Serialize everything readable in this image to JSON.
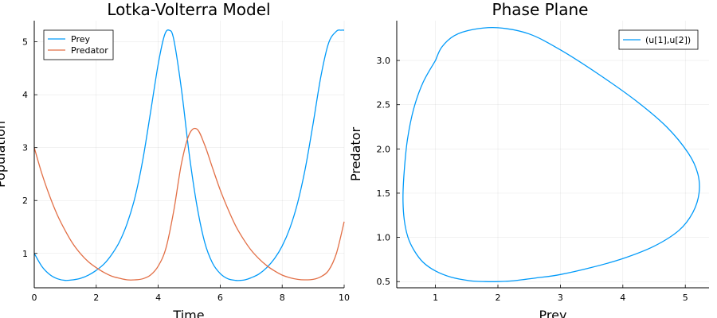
{
  "chart_data": [
    {
      "type": "line",
      "title": "Lotka-Volterra Model",
      "xlabel": "Time",
      "ylabel": "Population",
      "xlim": [
        0,
        10
      ],
      "ylim": [
        0.35,
        5.4
      ],
      "xticks": [
        0,
        2,
        4,
        6,
        8,
        10
      ],
      "yticks": [
        1,
        2,
        3,
        4,
        5
      ],
      "grid": true,
      "legend": "top-left",
      "series": [
        {
          "name": "Prey",
          "color": "#009af9",
          "x": [
            0,
            0.25,
            0.5,
            0.75,
            1.0,
            1.25,
            1.5,
            1.75,
            2.0,
            2.25,
            2.5,
            2.75,
            3.0,
            3.25,
            3.5,
            3.75,
            4.0,
            4.2,
            4.35,
            4.5,
            4.75,
            5.0,
            5.25,
            5.5,
            5.75,
            6.0,
            6.25,
            6.5,
            6.65,
            6.8,
            7.0,
            7.25,
            7.5,
            7.75,
            8.0,
            8.25,
            8.5,
            8.75,
            9.0,
            9.25,
            9.5,
            9.75,
            9.9,
            10.0
          ],
          "y": [
            1.0,
            0.75,
            0.6,
            0.52,
            0.49,
            0.5,
            0.53,
            0.59,
            0.68,
            0.8,
            0.98,
            1.22,
            1.57,
            2.06,
            2.76,
            3.66,
            4.58,
            5.12,
            5.22,
            5.05,
            4.1,
            2.88,
            1.9,
            1.21,
            0.82,
            0.62,
            0.52,
            0.49,
            0.49,
            0.5,
            0.54,
            0.61,
            0.73,
            0.9,
            1.14,
            1.48,
            1.96,
            2.62,
            3.46,
            4.35,
            4.98,
            5.2,
            5.22,
            5.22
          ]
        },
        {
          "name": "Predator",
          "color": "#e26f46",
          "x": [
            0,
            0.25,
            0.5,
            0.75,
            1.0,
            1.25,
            1.5,
            1.75,
            2.0,
            2.25,
            2.5,
            2.75,
            3.0,
            3.25,
            3.5,
            3.75,
            4.0,
            4.25,
            4.5,
            4.75,
            5.0,
            5.25,
            5.5,
            5.75,
            6.0,
            6.25,
            6.5,
            6.75,
            7.0,
            7.25,
            7.5,
            7.75,
            8.0,
            8.25,
            8.5,
            8.75,
            9.0,
            9.25,
            9.5,
            9.75,
            10.0
          ],
          "y": [
            3.0,
            2.5,
            2.08,
            1.72,
            1.43,
            1.18,
            0.99,
            0.84,
            0.73,
            0.64,
            0.57,
            0.53,
            0.5,
            0.5,
            0.52,
            0.59,
            0.76,
            1.1,
            1.8,
            2.7,
            3.25,
            3.35,
            3.05,
            2.62,
            2.2,
            1.84,
            1.52,
            1.27,
            1.06,
            0.9,
            0.77,
            0.67,
            0.59,
            0.54,
            0.51,
            0.5,
            0.51,
            0.56,
            0.68,
            1.0,
            1.6
          ]
        }
      ]
    },
    {
      "type": "line",
      "title": "Phase Plane",
      "xlabel": "Prey",
      "ylabel": "Predator",
      "xlim": [
        0.38,
        5.38
      ],
      "ylim": [
        0.43,
        3.45
      ],
      "xticks": [
        1,
        2,
        3,
        4,
        5
      ],
      "yticks": [
        0.5,
        1.0,
        1.5,
        2.0,
        2.5,
        3.0
      ],
      "ytick_labels": [
        "0.5",
        "1.0",
        "1.5",
        "2.0",
        "2.5",
        "3.0"
      ],
      "grid": true,
      "legend": "top-right",
      "series": [
        {
          "name": "(u[1],u[2])",
          "color": "#009af9",
          "x": [
            1.0,
            0.8,
            0.65,
            0.55,
            0.5,
            0.48,
            0.5,
            0.56,
            0.66,
            0.8,
            1.0,
            1.25,
            1.55,
            1.8,
            2.0,
            2.25,
            2.6,
            3.0,
            3.5,
            4.0,
            4.5,
            4.9,
            5.12,
            5.22,
            5.2,
            5.05,
            4.7,
            4.2,
            3.6,
            3.0,
            2.5,
            2.0,
            1.6,
            1.3,
            1.1,
            1.0
          ],
          "y": [
            3.0,
            2.75,
            2.45,
            2.1,
            1.75,
            1.45,
            1.2,
            1.0,
            0.85,
            0.72,
            0.62,
            0.55,
            0.51,
            0.5,
            0.5,
            0.51,
            0.54,
            0.58,
            0.66,
            0.76,
            0.9,
            1.08,
            1.28,
            1.5,
            1.72,
            1.95,
            2.25,
            2.55,
            2.85,
            3.12,
            3.3,
            3.37,
            3.35,
            3.28,
            3.15,
            3.0
          ]
        }
      ]
    }
  ]
}
